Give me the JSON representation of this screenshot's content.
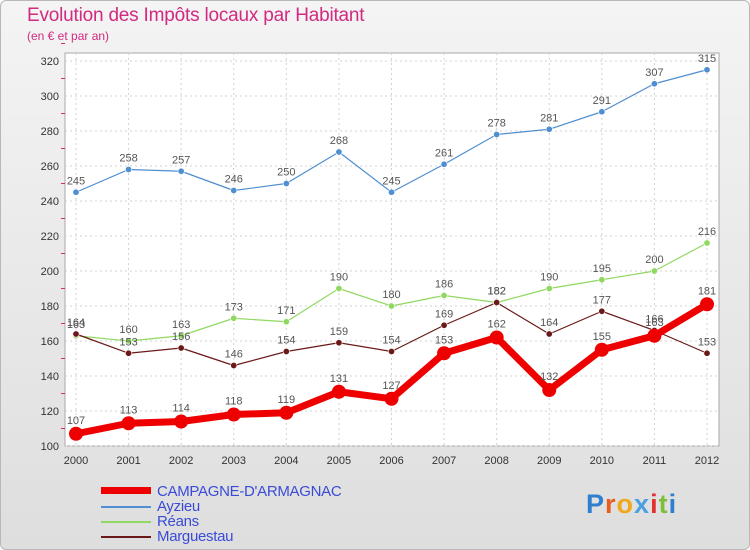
{
  "chart_data": {
    "type": "line",
    "title": "Evolution des Impôts locaux par Habitant",
    "subtitle": "(en € et par an)",
    "categories": [
      "2000",
      "2001",
      "2002",
      "2003",
      "2004",
      "2005",
      "2006",
      "2007",
      "2008",
      "2009",
      "2010",
      "2011",
      "2012"
    ],
    "ylim": [
      100,
      320
    ],
    "yticks": [
      100,
      120,
      140,
      160,
      180,
      200,
      220,
      240,
      260,
      280,
      300,
      320
    ],
    "series": [
      {
        "name": "CAMPAGNE-D'ARMAGNAC",
        "color": "#ee0000",
        "width": 7,
        "marker": 7,
        "labelColor": "#555555",
        "values": [
          107,
          113,
          114,
          118,
          119,
          131,
          127,
          153,
          162,
          132,
          155,
          163,
          181
        ]
      },
      {
        "name": "Ayzieu",
        "color": "#4f8ed0",
        "width": 1.2,
        "marker": 3.2,
        "labelColor": "#555555",
        "values": [
          245,
          258,
          257,
          246,
          250,
          268,
          245,
          261,
          278,
          281,
          291,
          307,
          315
        ]
      },
      {
        "name": "Réans",
        "color": "#90d860",
        "width": 1.2,
        "marker": 3.2,
        "labelColor": "#555555",
        "values": [
          163,
          160,
          163,
          173,
          171,
          190,
          180,
          186,
          182,
          190,
          195,
          200,
          216
        ]
      },
      {
        "name": "Marguestau",
        "color": "#6b1818",
        "width": 1.2,
        "marker": 3.2,
        "labelColor": "#555555",
        "values": [
          164,
          153,
          156,
          146,
          154,
          159,
          154,
          169,
          182,
          164,
          177,
          166,
          153
        ]
      }
    ]
  },
  "legend": {
    "items": [
      {
        "label": "CAMPAGNE-D'ARMAGNAC"
      },
      {
        "label": "Ayzieu"
      },
      {
        "label": "Réans"
      },
      {
        "label": "Marguestau"
      }
    ]
  },
  "logo": {
    "letters": [
      {
        "ch": "P",
        "color": "#2f7fd0"
      },
      {
        "ch": "r",
        "color": "#e85d1f"
      },
      {
        "ch": "o",
        "color": "#f0a81c"
      },
      {
        "ch": "x",
        "color": "#4aa0e0"
      },
      {
        "ch": "i",
        "color": "#e03030"
      },
      {
        "ch": "t",
        "color": "#7dbf3a"
      },
      {
        "ch": "i",
        "color": "#2f7fd0"
      }
    ]
  }
}
